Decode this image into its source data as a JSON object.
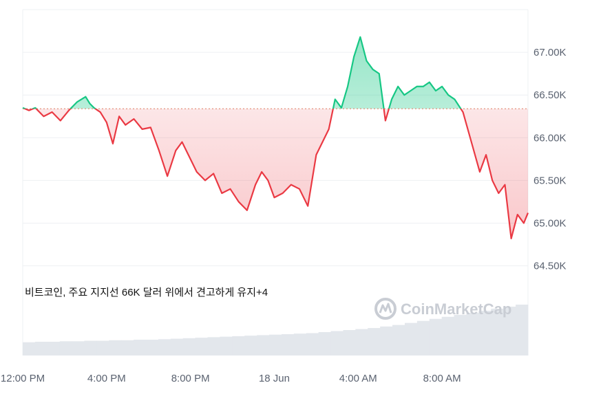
{
  "chart_data": {
    "type": "area",
    "title": "",
    "xlabel": "",
    "ylabel": "",
    "ylim": [
      63.45,
      67.5
    ],
    "reference_value": 66.34,
    "xlim": [
      0,
      24.1
    ],
    "x_unit": "hours since 12:00 PM (17 Jun)",
    "y_tick_labels": [
      "67.00K",
      "66.50K",
      "66.00K",
      "65.50K",
      "65.00K",
      "64.50K"
    ],
    "y_ticks": [
      67.0,
      66.5,
      66.0,
      65.5,
      65.0,
      64.5
    ],
    "x_tick_labels": [
      "12:00 PM",
      "4:00 PM",
      "8:00 PM",
      "18 Jun",
      "4:00 AM",
      "8:00 AM"
    ],
    "x_ticks": [
      0,
      4,
      8,
      12,
      16,
      20
    ],
    "series": [
      {
        "name": "price",
        "x": [
          0,
          0.3,
          0.6,
          1.0,
          1.4,
          1.8,
          2.2,
          2.6,
          3.0,
          3.2,
          3.4,
          3.7,
          4.0,
          4.3,
          4.6,
          4.9,
          5.3,
          5.7,
          6.1,
          6.5,
          6.9,
          7.3,
          7.6,
          7.9,
          8.3,
          8.7,
          9.1,
          9.5,
          9.9,
          10.3,
          10.7,
          11.1,
          11.4,
          11.7,
          12.0,
          12.4,
          12.8,
          13.2,
          13.6,
          14.0,
          14.3,
          14.6,
          14.9,
          15.2,
          15.5,
          15.8,
          16.1,
          16.4,
          16.7,
          17.0,
          17.3,
          17.6,
          17.9,
          18.2,
          18.5,
          18.8,
          19.1,
          19.4,
          19.7,
          20.0,
          20.3,
          20.6,
          21.0,
          21.4,
          21.8,
          22.1,
          22.4,
          22.7,
          23.0,
          23.3,
          23.6,
          23.9,
          24.1
        ],
        "y": [
          66.35,
          66.32,
          66.35,
          66.25,
          66.3,
          66.2,
          66.32,
          66.42,
          66.48,
          66.4,
          66.35,
          66.3,
          66.18,
          65.93,
          66.25,
          66.15,
          66.22,
          66.1,
          66.12,
          65.85,
          65.55,
          65.85,
          65.95,
          65.8,
          65.6,
          65.5,
          65.58,
          65.35,
          65.4,
          65.25,
          65.15,
          65.45,
          65.6,
          65.5,
          65.3,
          65.35,
          65.45,
          65.4,
          65.2,
          65.8,
          65.95,
          66.1,
          66.45,
          66.35,
          66.6,
          66.95,
          67.18,
          66.9,
          66.8,
          66.75,
          66.2,
          66.45,
          66.6,
          66.5,
          66.55,
          66.6,
          66.6,
          66.65,
          66.55,
          66.6,
          66.5,
          66.45,
          66.3,
          65.95,
          65.6,
          65.8,
          65.5,
          65.35,
          65.45,
          64.82,
          65.1,
          65.0,
          65.12
        ]
      }
    ],
    "volume": [
      0.26,
      0.27,
      0.27,
      0.28,
      0.28,
      0.29,
      0.29,
      0.3,
      0.3,
      0.31,
      0.31,
      0.32,
      0.33,
      0.34,
      0.35,
      0.36,
      0.37,
      0.38,
      0.39,
      0.4,
      0.41,
      0.42,
      0.43,
      0.44,
      0.46,
      0.48,
      0.5,
      0.52,
      0.54,
      0.57,
      0.6,
      0.64,
      0.68,
      0.72,
      0.76,
      0.8,
      0.84,
      0.88,
      0.92,
      0.96,
      1.0
    ],
    "colors": {
      "up_line": "#16c784",
      "down_line": "#ea3943",
      "up_fill": "#16c784",
      "down_fill": "#ea3943",
      "reference_line": "#e07a5f",
      "grid": "#eef0f3",
      "volume": "#e3e7ec"
    },
    "annotation": {
      "text": "비트코인, 주요 지지선 66K 달러 위에서 견고하게 유지",
      "suffix": "+4"
    },
    "watermark": "CoinMarketCap",
    "grid": true
  }
}
